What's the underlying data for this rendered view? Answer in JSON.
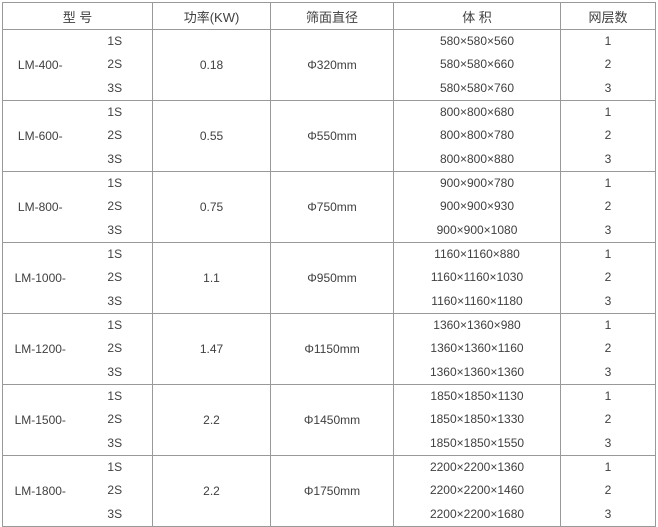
{
  "colors": {
    "border": "#999999",
    "text": "#404040",
    "background": "#ffffff"
  },
  "table": {
    "headers": {
      "model": "型 号",
      "power": "功率(KW)",
      "diameter": "筛面直径",
      "volume": "体 积",
      "layers": "网层数"
    },
    "groups": [
      {
        "model": "LM-400-",
        "sizes": [
          "1S",
          "2S",
          "3S"
        ],
        "power": "0.18",
        "diameter": "Φ320mm",
        "volumes": [
          "580×580×560",
          "580×580×660",
          "580×580×760"
        ],
        "layers": [
          "1",
          "2",
          "3"
        ]
      },
      {
        "model": "LM-600-",
        "sizes": [
          "1S",
          "2S",
          "3S"
        ],
        "power": "0.55",
        "diameter": "Φ550mm",
        "volumes": [
          "800×800×680",
          "800×800×780",
          "800×800×880"
        ],
        "layers": [
          "1",
          "2",
          "3"
        ]
      },
      {
        "model": "LM-800-",
        "sizes": [
          "1S",
          "2S",
          "3S"
        ],
        "power": "0.75",
        "diameter": "Φ750mm",
        "volumes": [
          "900×900×780",
          "900×900×930",
          "900×900×1080"
        ],
        "layers": [
          "1",
          "2",
          "3"
        ]
      },
      {
        "model": "LM-1000-",
        "sizes": [
          "1S",
          "2S",
          "3S"
        ],
        "power": "1.1",
        "diameter": "Φ950mm",
        "volumes": [
          "1160×1160×880",
          "1160×1160×1030",
          "1160×1160×1180"
        ],
        "layers": [
          "1",
          "2",
          "3"
        ]
      },
      {
        "model": "LM-1200-",
        "sizes": [
          "1S",
          "2S",
          "3S"
        ],
        "power": "1.47",
        "diameter": "Φ1150mm",
        "volumes": [
          "1360×1360×980",
          "1360×1360×1160",
          "1360×1360×1360"
        ],
        "layers": [
          "1",
          "2",
          "3"
        ]
      },
      {
        "model": "LM-1500-",
        "sizes": [
          "1S",
          "2S",
          "3S"
        ],
        "power": "2.2",
        "diameter": "Φ1450mm",
        "volumes": [
          "1850×1850×1130",
          "1850×1850×1330",
          "1850×1850×1550"
        ],
        "layers": [
          "1",
          "2",
          "3"
        ]
      },
      {
        "model": "LM-1800-",
        "sizes": [
          "1S",
          "2S",
          "3S"
        ],
        "power": "2.2",
        "diameter": "Φ1750mm",
        "volumes": [
          "2200×2200×1360",
          "2200×2200×1460",
          "2200×2200×1680"
        ],
        "layers": [
          "1",
          "2",
          "3"
        ]
      }
    ]
  }
}
